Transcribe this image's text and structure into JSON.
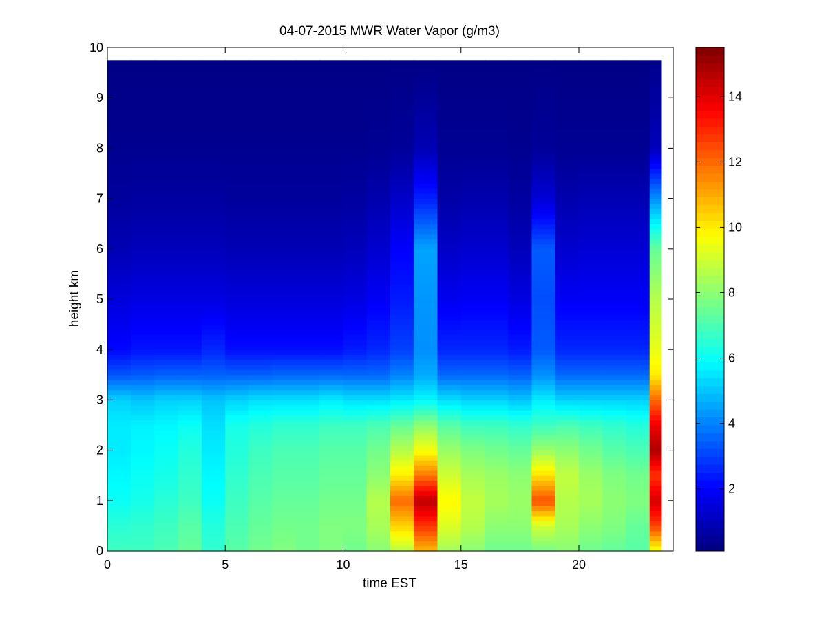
{
  "chart_data": {
    "type": "heatmap",
    "title": "04-07-2015 MWR Water Vapor (g/m3)",
    "xlabel": "time EST",
    "ylabel": "height km",
    "xlim": [
      0,
      24
    ],
    "ylim": [
      0,
      10
    ],
    "xticks": [
      0,
      5,
      10,
      15,
      20
    ],
    "xtick_labels": [
      "0",
      "5",
      "10",
      "15",
      "20"
    ],
    "yticks": [
      0,
      1,
      2,
      3,
      4,
      5,
      6,
      7,
      8,
      9,
      10
    ],
    "ytick_labels": [
      "0",
      "1",
      "2",
      "3",
      "4",
      "5",
      "6",
      "7",
      "8",
      "9",
      "10"
    ],
    "colormap": "jet",
    "colorbar": {
      "range": [
        0.1,
        15.5
      ],
      "ticks": [
        2,
        4,
        6,
        8,
        10,
        12,
        14
      ],
      "tick_labels": [
        "2",
        "4",
        "6",
        "8",
        "10",
        "12",
        "14"
      ]
    },
    "time_bins_start": [
      0,
      1,
      2,
      3,
      4,
      5,
      6,
      7,
      8,
      9,
      10,
      11,
      12,
      13,
      14,
      15,
      16,
      17,
      18,
      19,
      20,
      21,
      22,
      23
    ],
    "time_bins_end": [
      1,
      2,
      3,
      4,
      5,
      6,
      7,
      8,
      9,
      10,
      11,
      12,
      13,
      14,
      15,
      16,
      17,
      18,
      19,
      20,
      21,
      22,
      23,
      23.5
    ],
    "height_top_km": 9.75,
    "profiles_note": "water vapor density (g/m3) at heights 0.05, 0.5, 1, 1.5, 2, 2.5, 3, 3.5, 4, 5, 6, 7, 8, 9.7 km",
    "profile_heights_km": [
      0.05,
      0.5,
      1.0,
      1.5,
      2.0,
      2.5,
      3.0,
      3.5,
      4.0,
      5.0,
      6.0,
      7.0,
      8.0,
      9.7
    ],
    "profiles": [
      [
        6.8,
        6.5,
        6.0,
        5.8,
        5.6,
        5.6,
        5.2,
        3.3,
        2.1,
        1.5,
        0.9,
        0.55,
        0.35,
        0.2
      ],
      [
        6.8,
        6.6,
        6.2,
        6.0,
        5.8,
        5.7,
        5.0,
        3.4,
        2.3,
        1.6,
        1.0,
        0.6,
        0.35,
        0.2
      ],
      [
        7.0,
        6.8,
        6.5,
        6.2,
        6.0,
        5.8,
        5.2,
        3.5,
        2.3,
        1.6,
        1.0,
        0.6,
        0.35,
        0.2
      ],
      [
        7.4,
        7.2,
        6.8,
        6.6,
        6.4,
        6.0,
        5.2,
        3.5,
        2.3,
        1.6,
        1.0,
        0.6,
        0.35,
        0.2
      ],
      [
        6.6,
        6.4,
        6.0,
        5.8,
        5.6,
        5.4,
        5.0,
        3.5,
        2.6,
        1.6,
        1.0,
        0.6,
        0.35,
        0.2
      ],
      [
        7.2,
        7.0,
        6.8,
        6.6,
        6.4,
        6.2,
        5.2,
        3.5,
        2.2,
        1.5,
        0.9,
        0.55,
        0.35,
        0.2
      ],
      [
        7.6,
        7.4,
        7.2,
        7.0,
        6.8,
        6.4,
        5.4,
        3.5,
        2.2,
        1.5,
        0.9,
        0.55,
        0.35,
        0.2
      ],
      [
        7.8,
        7.6,
        7.4,
        7.2,
        7.0,
        6.6,
        5.4,
        3.6,
        2.2,
        1.5,
        0.9,
        0.55,
        0.35,
        0.2
      ],
      [
        7.6,
        7.6,
        7.4,
        7.2,
        7.0,
        6.6,
        5.4,
        3.6,
        2.2,
        1.5,
        0.9,
        0.55,
        0.35,
        0.2
      ],
      [
        7.8,
        7.8,
        7.6,
        7.4,
        7.2,
        6.8,
        5.6,
        3.6,
        2.2,
        1.5,
        0.9,
        0.55,
        0.35,
        0.2
      ],
      [
        7.6,
        7.8,
        7.6,
        7.4,
        7.2,
        6.8,
        5.4,
        3.6,
        2.4,
        1.6,
        1.0,
        0.6,
        0.35,
        0.2
      ],
      [
        8.0,
        8.4,
        8.6,
        8.0,
        7.6,
        7.0,
        5.4,
        3.6,
        2.6,
        1.9,
        1.3,
        0.8,
        0.4,
        0.2
      ],
      [
        8.8,
        10.4,
        12.0,
        10.0,
        8.6,
        7.4,
        5.6,
        4.0,
        3.0,
        2.4,
        2.0,
        1.2,
        0.5,
        0.2
      ],
      [
        11.0,
        12.8,
        14.6,
        11.8,
        9.6,
        8.0,
        5.8,
        4.6,
        4.2,
        4.3,
        4.5,
        2.5,
        0.9,
        0.2
      ],
      [
        8.4,
        9.2,
        9.8,
        9.0,
        8.2,
        7.2,
        5.4,
        3.6,
        2.6,
        1.8,
        1.2,
        0.7,
        0.4,
        0.2
      ],
      [
        8.0,
        8.6,
        8.8,
        8.4,
        7.8,
        6.8,
        5.2,
        3.6,
        2.6,
        1.9,
        1.3,
        0.8,
        0.4,
        0.2
      ],
      [
        7.6,
        8.0,
        8.4,
        8.2,
        7.6,
        6.8,
        5.2,
        3.6,
        2.6,
        1.9,
        1.3,
        0.8,
        0.4,
        0.2
      ],
      [
        7.6,
        8.0,
        8.2,
        8.0,
        7.4,
        6.6,
        5.0,
        3.5,
        2.4,
        1.6,
        1.0,
        0.6,
        0.35,
        0.2
      ],
      [
        7.8,
        9.0,
        12.4,
        10.2,
        8.2,
        6.8,
        5.6,
        4.2,
        3.4,
        3.2,
        3.4,
        1.4,
        0.5,
        0.2
      ],
      [
        8.0,
        8.4,
        8.6,
        8.8,
        8.0,
        7.0,
        5.2,
        3.6,
        2.6,
        1.9,
        1.3,
        0.8,
        0.4,
        0.2
      ],
      [
        7.6,
        8.0,
        8.4,
        8.2,
        7.6,
        6.8,
        5.2,
        3.6,
        2.6,
        1.9,
        1.4,
        0.9,
        0.4,
        0.2
      ],
      [
        7.4,
        7.8,
        8.0,
        7.8,
        7.2,
        6.6,
        5.2,
        3.6,
        2.6,
        1.9,
        1.4,
        0.9,
        0.4,
        0.2
      ],
      [
        7.2,
        7.4,
        7.8,
        7.6,
        7.0,
        6.4,
        5.2,
        3.6,
        2.6,
        1.9,
        1.4,
        0.9,
        0.4,
        0.2
      ],
      [
        9.8,
        12.6,
        14.2,
        12.8,
        14.8,
        13.8,
        12.0,
        10.0,
        9.4,
        8.6,
        7.4,
        4.2,
        1.0,
        0.3
      ]
    ]
  }
}
